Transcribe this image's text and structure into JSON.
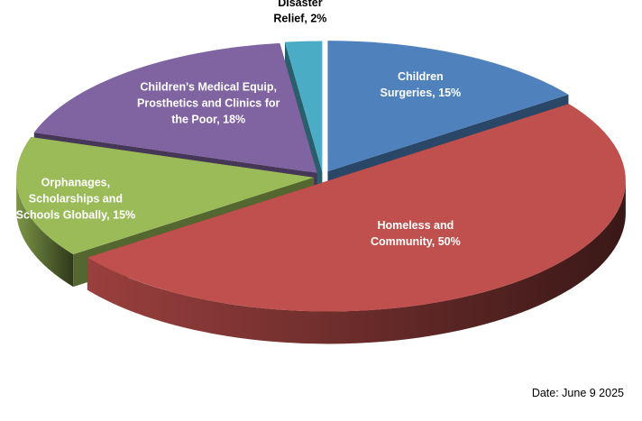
{
  "chart_data": {
    "type": "pie",
    "style": "3d-exploded",
    "slices": [
      {
        "label_lines": [
          "Children",
          "Surgeries, 15%"
        ],
        "value": 15,
        "color": "#4f81bd",
        "label_color": "#ffffff"
      },
      {
        "label_lines": [
          "Homeless and",
          "Community, 50%"
        ],
        "value": 50,
        "color": "#c0504d",
        "label_color": "#ffffff"
      },
      {
        "label_lines": [
          "Orphanages,",
          "Scholarships and",
          "Schools Globally, 15%"
        ],
        "value": 15,
        "color": "#9bbb59",
        "label_color": "#ffffff"
      },
      {
        "label_lines": [
          "Children's Medical Equip,",
          "Prosthetics and Clinics for",
          "the Poor, 18%"
        ],
        "value": 18,
        "color": "#8064a2",
        "label_color": "#ffffff"
      },
      {
        "label_lines": [
          "Disaster",
          "Relief, 2%"
        ],
        "value": 2,
        "color": "#4bacc6",
        "label_color": "#000000"
      }
    ]
  },
  "date_note": "Date: June 9 2025"
}
